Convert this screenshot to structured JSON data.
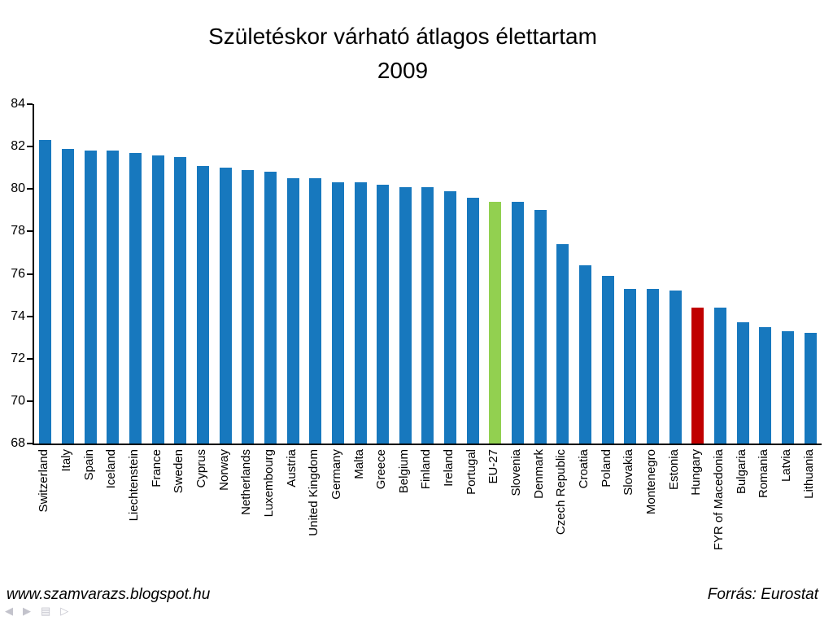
{
  "title": {
    "line1": "Születéskor várható átlagos élettartam",
    "line2": "2009"
  },
  "footer": {
    "left": "www.szamvarazs.blogspot.hu",
    "right": "Forrás: Eurostat"
  },
  "corner_icons": [
    {
      "name": "nav-back-icon",
      "glyph": "◀"
    },
    {
      "name": "nav-forward-icon",
      "glyph": "▶"
    },
    {
      "name": "menu-icon",
      "glyph": "▤"
    },
    {
      "name": "nav-next-icon",
      "glyph": "▷"
    }
  ],
  "chart_data": {
    "type": "bar",
    "title": "Születéskor várható átlagos élettartam",
    "subtitle": "2009",
    "xlabel": "",
    "ylabel": "",
    "grid": false,
    "legend": "none",
    "ylim": [
      68,
      84
    ],
    "yticks": [
      68,
      70,
      72,
      74,
      76,
      78,
      80,
      82,
      84
    ],
    "bar_color": "#1778BE",
    "highlights": {
      "EU-27": "#92D050",
      "Hungary": "#C00000"
    },
    "categories": [
      "Switzerland",
      "Italy",
      "Spain",
      "Iceland",
      "Liechtenstein",
      "France",
      "Sweden",
      "Cyprus",
      "Norway",
      "Netherlands",
      "Luxembourg",
      "Austria",
      "United Kingdom",
      "Germany",
      "Malta",
      "Greece",
      "Belgium",
      "Finland",
      "Ireland",
      "Portugal",
      "EU-27",
      "Slovenia",
      "Denmark",
      "Czech Republic",
      "Croatia",
      "Poland",
      "Slovakia",
      "Montenegro",
      "Estonia",
      "Hungary",
      "FYR of Macedonia",
      "Bulgaria",
      "Romania",
      "Latvia",
      "Lithuania"
    ],
    "values": [
      82.3,
      81.9,
      81.8,
      81.8,
      81.7,
      81.6,
      81.5,
      81.1,
      81.0,
      80.9,
      80.8,
      80.5,
      80.5,
      80.3,
      80.3,
      80.2,
      80.1,
      80.1,
      79.9,
      79.6,
      79.4,
      79.4,
      79.0,
      77.4,
      76.4,
      75.9,
      75.3,
      75.3,
      75.2,
      74.4,
      74.4,
      73.7,
      73.5,
      73.3,
      73.2
    ]
  }
}
